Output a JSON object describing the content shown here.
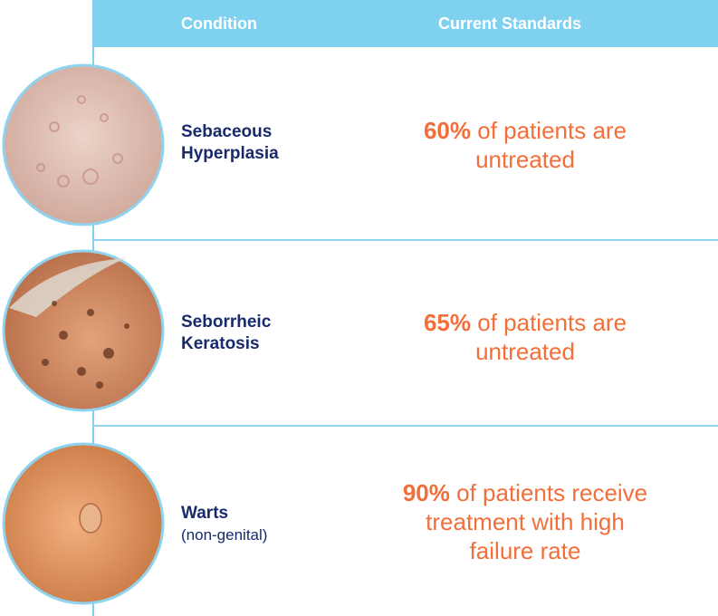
{
  "header": {
    "condition": "Condition",
    "standards": "Current Standards"
  },
  "rows": [
    {
      "condition": "Sebaceous Hyperplasia",
      "stat": "60%",
      "lines": [
        "of patients are",
        "untreated"
      ]
    },
    {
      "condition": "Seborrheic Keratosis",
      "stat": "65%",
      "lines": [
        "of patients are",
        "untreated"
      ]
    },
    {
      "condition": "Warts",
      "note": "(non-genital)",
      "stat": "90%",
      "lines": [
        "of patients receive",
        "treatment with high",
        "failure rate"
      ]
    }
  ]
}
